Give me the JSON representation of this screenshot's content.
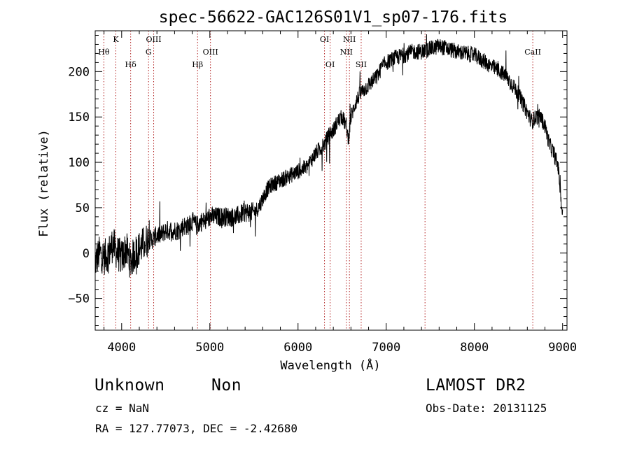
{
  "chart_data": {
    "type": "line",
    "title": "spec-56622-GAC126S01V1_sp07-176.fits",
    "xlabel": "Wavelength (Å)",
    "ylabel": "Flux (relative)",
    "xlim": [
      3700,
      9050
    ],
    "ylim": [
      -85,
      245
    ],
    "xticks": [
      4000,
      5000,
      6000,
      7000,
      8000,
      9000
    ],
    "yticks": [
      -50,
      0,
      50,
      100,
      150,
      200
    ],
    "grid": false,
    "line_color": "#000000",
    "marker_color": "#b22222",
    "lines": [
      {
        "label": "Hθ",
        "x": 3798,
        "row": 1
      },
      {
        "label": "K",
        "x": 3934,
        "row": 0
      },
      {
        "label": "Hδ",
        "x": 4102,
        "row": 2
      },
      {
        "label": "G",
        "x": 4305,
        "row": 1
      },
      {
        "label": "OIII",
        "x": 4363,
        "row": 0
      },
      {
        "label": "Hβ",
        "x": 4861,
        "row": 2
      },
      {
        "label": "OIII",
        "x": 5007,
        "row": 1
      },
      {
        "label": "OI",
        "x": 6300,
        "row": 0
      },
      {
        "label": "OI",
        "x": 6364,
        "row": 2
      },
      {
        "label": "NII",
        "x": 6548,
        "row": 1
      },
      {
        "label": "NII",
        "x": 6583,
        "row": 0
      },
      {
        "label": "SII",
        "x": 6716,
        "row": 2
      },
      {
        "label": "",
        "x": 7440,
        "row": 2
      },
      {
        "label": "CaII",
        "x": 8662,
        "row": 1
      }
    ],
    "spectrum": {
      "x": [
        3700,
        3750,
        3800,
        3850,
        3900,
        3950,
        4000,
        4050,
        4100,
        4150,
        4200,
        4250,
        4300,
        4350,
        4400,
        4450,
        4500,
        4550,
        4600,
        4650,
        4700,
        4750,
        4800,
        4850,
        4900,
        4950,
        5000,
        5100,
        5200,
        5300,
        5400,
        5500,
        5550,
        5600,
        5650,
        5700,
        5800,
        5900,
        6000,
        6100,
        6200,
        6300,
        6350,
        6400,
        6450,
        6500,
        6550,
        6570,
        6600,
        6650,
        6700,
        6750,
        6800,
        6850,
        6900,
        6950,
        7000,
        7100,
        7200,
        7300,
        7400,
        7500,
        7600,
        7700,
        7800,
        7900,
        8000,
        8100,
        8200,
        8300,
        8400,
        8500,
        8600,
        8650,
        8700,
        8750,
        8800,
        8850,
        8900,
        8950,
        9000
      ],
      "y": [
        -10,
        0,
        -5,
        0,
        10,
        0,
        -5,
        5,
        -10,
        0,
        5,
        10,
        15,
        15,
        20,
        20,
        25,
        25,
        25,
        25,
        30,
        30,
        35,
        30,
        35,
        35,
        40,
        40,
        40,
        40,
        45,
        45,
        50,
        60,
        70,
        75,
        80,
        85,
        90,
        95,
        110,
        120,
        130,
        135,
        145,
        150,
        140,
        125,
        150,
        165,
        175,
        180,
        185,
        190,
        195,
        205,
        210,
        215,
        218,
        222,
        222,
        225,
        228,
        225,
        222,
        220,
        218,
        212,
        205,
        200,
        190,
        175,
        155,
        145,
        150,
        150,
        140,
        120,
        110,
        95,
        40
      ]
    }
  },
  "footer": {
    "object_class": "Unknown",
    "subclass": "Non",
    "cz": "cz = NaN",
    "coords": "RA = 127.77073, DEC =  -2.42680",
    "survey": "LAMOST DR2",
    "obs_date": "Obs-Date: 20131125"
  }
}
